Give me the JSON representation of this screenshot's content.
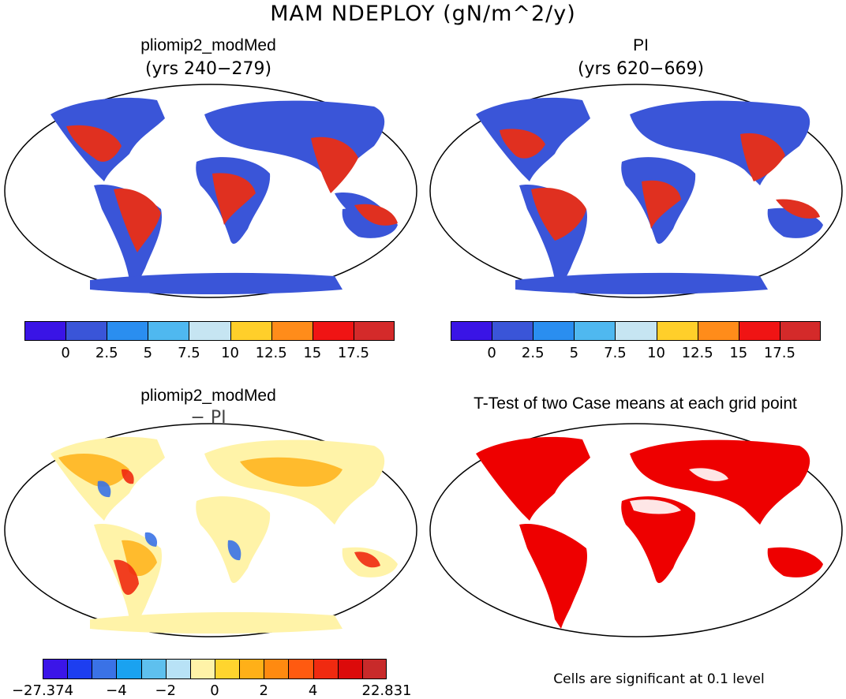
{
  "title": "MAM NDEPLOY (gN/m^2/y)",
  "panels": {
    "p1": {
      "title": "pliomip2_modMed",
      "subtitle": "(yrs 240−279)"
    },
    "p2": {
      "title": "PI",
      "subtitle": "(yrs 620−669)"
    },
    "p3": {
      "title": "pliomip2_modMed",
      "subtitle": "− PI"
    },
    "p4": {
      "title": "T-Test of two Case means at each grid point",
      "note": "Cells are significant at 0.1 level"
    }
  },
  "colorbar_top": {
    "colors": [
      "#3a14e6",
      "#3a55d8",
      "#2a8ef0",
      "#4fb8f0",
      "#c6e5f2",
      "#ffcf2a",
      "#ff8c1a",
      "#f01414",
      "#d42a2a"
    ],
    "labels": [
      "0",
      "2.5",
      "5",
      "7.5",
      "10",
      "12.5",
      "15",
      "17.5"
    ]
  },
  "colorbar_bottom": {
    "colors": [
      "#3b15e8",
      "#1d3ef0",
      "#3a72e6",
      "#1aa2f0",
      "#5ec0ee",
      "#b8e2f6",
      "#fff3a8",
      "#ffd52e",
      "#ffb018",
      "#ff8a10",
      "#ff5a10",
      "#f02a10",
      "#dc0a0a",
      "#c82a2a"
    ],
    "labels": [
      "−27.374",
      "−4",
      "−2",
      "0",
      "2",
      "4",
      "22.831"
    ]
  },
  "legend_colors": {
    "significant": "#ee0000",
    "land_low": "#3a55d8",
    "land_high": "#e03020",
    "diff_base": "#fff3a8"
  }
}
